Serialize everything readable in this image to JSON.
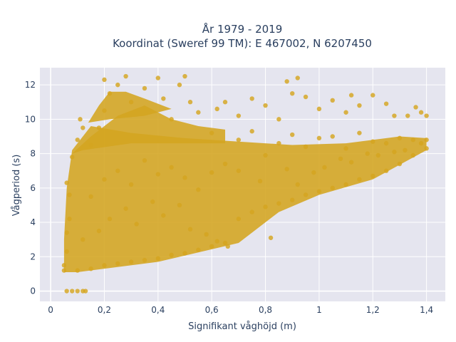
{
  "chart_data": {
    "type": "scatter",
    "title": "År 1979 - 2019",
    "subtitle": "Koordinat (Sweref 99 TM): E 467002, N 6207450",
    "xlabel": "Signifikant våghöjd (m)",
    "ylabel": "Vågperiod (s)",
    "xlim": [
      -0.04,
      1.47
    ],
    "ylim": [
      -0.6,
      13.0
    ],
    "x_ticks": [
      0,
      0.2,
      0.4,
      0.6,
      0.8,
      1.0,
      1.2,
      1.4
    ],
    "x_tick_labels": [
      "0",
      "0,2",
      "0,4",
      "0,6",
      "0,8",
      "1",
      "1,2",
      "1,4"
    ],
    "y_ticks": [
      0,
      2,
      4,
      6,
      8,
      10,
      12
    ],
    "y_tick_labels": [
      "0",
      "2",
      "4",
      "6",
      "8",
      "10",
      "12"
    ],
    "grid": true,
    "legend": "none",
    "colors": {
      "marker": "#d4a520",
      "plot_bg": "#e5e5ef",
      "grid": "#ffffff",
      "text": "#2a3f5f"
    },
    "series": [
      {
        "points": [
          [
            0.06,
            0.0
          ],
          [
            0.08,
            0.0
          ],
          [
            0.1,
            0.0
          ],
          [
            0.12,
            0.0
          ],
          [
            0.13,
            0.0
          ],
          [
            0.05,
            1.2
          ],
          [
            0.05,
            1.5
          ],
          [
            0.06,
            2.3
          ],
          [
            0.06,
            3.4
          ],
          [
            0.07,
            4.2
          ],
          [
            0.07,
            5.6
          ],
          [
            0.06,
            6.3
          ],
          [
            0.08,
            7.8
          ],
          [
            0.1,
            8.8
          ],
          [
            0.11,
            10.0
          ],
          [
            0.12,
            9.5
          ],
          [
            0.1,
            1.2
          ],
          [
            0.15,
            1.3
          ],
          [
            0.2,
            1.5
          ],
          [
            0.25,
            1.6
          ],
          [
            0.3,
            1.7
          ],
          [
            0.35,
            1.8
          ],
          [
            0.4,
            1.9
          ],
          [
            0.45,
            2.1
          ],
          [
            0.5,
            2.2
          ],
          [
            0.55,
            2.4
          ],
          [
            0.6,
            2.6
          ],
          [
            0.65,
            2.8
          ],
          [
            0.12,
            3.0
          ],
          [
            0.18,
            3.5
          ],
          [
            0.22,
            4.2
          ],
          [
            0.28,
            4.8
          ],
          [
            0.32,
            3.9
          ],
          [
            0.38,
            5.2
          ],
          [
            0.42,
            4.4
          ],
          [
            0.48,
            5.0
          ],
          [
            0.52,
            3.6
          ],
          [
            0.58,
            3.3
          ],
          [
            0.62,
            2.9
          ],
          [
            0.66,
            2.6
          ],
          [
            0.15,
            5.5
          ],
          [
            0.2,
            6.5
          ],
          [
            0.25,
            7.0
          ],
          [
            0.3,
            6.2
          ],
          [
            0.35,
            7.6
          ],
          [
            0.4,
            6.8
          ],
          [
            0.45,
            7.2
          ],
          [
            0.5,
            6.6
          ],
          [
            0.55,
            5.9
          ],
          [
            0.6,
            6.9
          ],
          [
            0.65,
            7.4
          ],
          [
            0.7,
            7.0
          ],
          [
            0.15,
            8.5
          ],
          [
            0.18,
            9.5
          ],
          [
            0.2,
            10.5
          ],
          [
            0.22,
            11.5
          ],
          [
            0.2,
            12.3
          ],
          [
            0.25,
            12.0
          ],
          [
            0.28,
            12.5
          ],
          [
            0.3,
            11.0
          ],
          [
            0.35,
            11.8
          ],
          [
            0.4,
            12.4
          ],
          [
            0.42,
            11.2
          ],
          [
            0.45,
            10.0
          ],
          [
            0.48,
            12.0
          ],
          [
            0.5,
            12.5
          ],
          [
            0.52,
            11.0
          ],
          [
            0.55,
            10.4
          ],
          [
            0.6,
            9.2
          ],
          [
            0.62,
            10.6
          ],
          [
            0.65,
            11.0
          ],
          [
            0.7,
            10.2
          ],
          [
            0.75,
            11.2
          ],
          [
            0.8,
            10.8
          ],
          [
            0.85,
            10.0
          ],
          [
            0.9,
            11.5
          ],
          [
            0.88,
            12.2
          ],
          [
            0.92,
            12.4
          ],
          [
            0.95,
            11.3
          ],
          [
            1.0,
            10.6
          ],
          [
            1.05,
            11.1
          ],
          [
            1.1,
            10.4
          ],
          [
            1.12,
            11.4
          ],
          [
            1.15,
            10.8
          ],
          [
            1.2,
            11.4
          ],
          [
            1.25,
            10.9
          ],
          [
            1.28,
            10.2
          ],
          [
            1.33,
            10.2
          ],
          [
            1.36,
            10.7
          ],
          [
            1.38,
            10.4
          ],
          [
            1.4,
            10.2
          ],
          [
            0.7,
            8.8
          ],
          [
            0.75,
            9.3
          ],
          [
            0.8,
            7.9
          ],
          [
            0.85,
            8.6
          ],
          [
            0.9,
            9.1
          ],
          [
            0.95,
            8.4
          ],
          [
            1.0,
            8.9
          ],
          [
            1.05,
            9.0
          ],
          [
            1.1,
            8.3
          ],
          [
            1.15,
            9.2
          ],
          [
            1.2,
            8.7
          ],
          [
            1.25,
            8.6
          ],
          [
            1.3,
            8.9
          ],
          [
            1.35,
            8.8
          ],
          [
            1.4,
            8.8
          ],
          [
            0.7,
            4.2
          ],
          [
            0.75,
            4.6
          ],
          [
            0.8,
            4.9
          ],
          [
            0.85,
            5.1
          ],
          [
            0.9,
            5.3
          ],
          [
            0.95,
            5.6
          ],
          [
            1.0,
            5.8
          ],
          [
            1.05,
            6.0
          ],
          [
            1.1,
            6.2
          ],
          [
            1.15,
            6.5
          ],
          [
            1.2,
            6.7
          ],
          [
            1.25,
            7.0
          ],
          [
            1.3,
            7.4
          ],
          [
            1.35,
            7.9
          ],
          [
            1.4,
            8.3
          ],
          [
            0.82,
            3.1
          ],
          [
            0.92,
            6.2
          ],
          [
            1.02,
            7.2
          ],
          [
            1.12,
            7.5
          ],
          [
            1.22,
            7.9
          ],
          [
            1.32,
            8.2
          ],
          [
            0.78,
            6.4
          ],
          [
            0.88,
            7.1
          ],
          [
            0.98,
            6.9
          ],
          [
            1.08,
            7.7
          ],
          [
            1.18,
            8.0
          ],
          [
            1.28,
            8.1
          ],
          [
            1.38,
            8.6
          ]
        ]
      }
    ]
  }
}
